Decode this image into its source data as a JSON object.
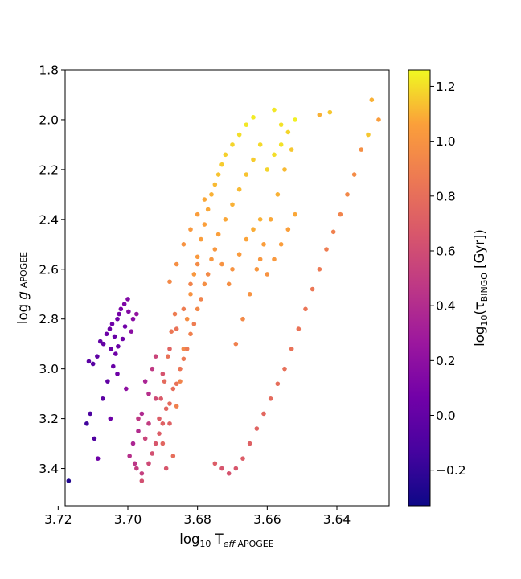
{
  "chart_data": {
    "type": "scatter",
    "xlabel": "log₁₀ T_eff APOGEE",
    "ylabel": "log g APOGEE",
    "xlim": [
      3.718,
      3.625
    ],
    "ylim": [
      3.55,
      1.8
    ],
    "xticks": [
      3.72,
      3.7,
      3.68,
      3.66,
      3.64
    ],
    "xtick_labels": [
      "3.72",
      "3.70",
      "3.68",
      "3.66",
      "3.64"
    ],
    "yticks": [
      1.8,
      2.0,
      2.2,
      2.4,
      2.6,
      2.8,
      3.0,
      3.2,
      3.4
    ],
    "ytick_labels": [
      "1.8",
      "2.0",
      "2.2",
      "2.4",
      "2.6",
      "2.8",
      "3.0",
      "3.2",
      "3.4"
    ],
    "grid": false,
    "colorbar": {
      "label": "log₁₀(τ_BINGO [Gyr])",
      "colormap": "plasma",
      "range": [
        -0.33,
        1.26
      ],
      "ticks": [
        -0.2,
        0.0,
        0.2,
        0.4,
        0.6,
        0.8,
        1.0,
        1.2
      ],
      "tick_labels": [
        "−0.2",
        "0.0",
        "0.2",
        "0.4",
        "0.6",
        "0.8",
        "1.0",
        "1.2"
      ]
    },
    "points": [
      [
        3.7061,
        2.86,
        0.04
      ],
      [
        3.7052,
        2.84,
        0.03
      ],
      [
        3.7045,
        2.82,
        0.05
      ],
      [
        3.7038,
        2.87,
        0.02
      ],
      [
        3.703,
        2.8,
        0.06
      ],
      [
        3.7025,
        2.78,
        0.08
      ],
      [
        3.707,
        2.9,
        0.01
      ],
      [
        3.7079,
        2.89,
        0.0
      ],
      [
        3.7048,
        2.92,
        0.02
      ],
      [
        3.7035,
        2.94,
        0.05
      ],
      [
        3.702,
        2.76,
        0.1
      ],
      [
        3.701,
        2.74,
        0.12
      ],
      [
        3.6998,
        2.77,
        0.15
      ],
      [
        3.6985,
        2.8,
        0.17
      ],
      [
        3.7008,
        2.83,
        0.06
      ],
      [
        3.7015,
        2.88,
        0.05
      ],
      [
        3.7028,
        2.91,
        0.03
      ],
      [
        3.7088,
        2.95,
        -0.02
      ],
      [
        3.71,
        2.98,
        -0.05
      ],
      [
        3.7112,
        2.97,
        -0.03
      ],
      [
        3.7042,
        2.99,
        0.02
      ],
      [
        3.703,
        3.02,
        0.05
      ],
      [
        3.7058,
        3.05,
        -0.01
      ],
      [
        3.7005,
        3.08,
        0.2
      ],
      [
        3.7072,
        3.12,
        -0.03
      ],
      [
        3.7108,
        3.18,
        -0.1
      ],
      [
        3.7118,
        3.22,
        -0.15
      ],
      [
        3.7096,
        3.28,
        -0.08
      ],
      [
        3.7086,
        3.36,
        0.05
      ],
      [
        3.717,
        3.45,
        -0.26
      ],
      [
        3.705,
        3.2,
        0.05
      ],
      [
        3.699,
        2.85,
        0.18
      ],
      [
        3.6975,
        2.78,
        0.22
      ],
      [
        3.7,
        2.72,
        0.14
      ],
      [
        3.695,
        3.05,
        0.35
      ],
      [
        3.694,
        3.1,
        0.42
      ],
      [
        3.693,
        3.0,
        0.48
      ],
      [
        3.692,
        2.95,
        0.55
      ],
      [
        3.696,
        3.18,
        0.38
      ],
      [
        3.697,
        3.25,
        0.4
      ],
      [
        3.6985,
        3.3,
        0.36
      ],
      [
        3.6995,
        3.35,
        0.42
      ],
      [
        3.6975,
        3.4,
        0.5
      ],
      [
        3.696,
        3.45,
        0.62
      ],
      [
        3.691,
        3.2,
        0.7
      ],
      [
        3.69,
        3.3,
        0.75
      ],
      [
        3.6905,
        3.12,
        0.68
      ],
      [
        3.6895,
        3.05,
        0.78
      ],
      [
        3.6885,
        2.95,
        0.82
      ],
      [
        3.6875,
        2.85,
        0.85
      ],
      [
        3.6865,
        2.78,
        0.88
      ],
      [
        3.688,
        3.22,
        0.72
      ],
      [
        3.687,
        3.35,
        0.8
      ],
      [
        3.689,
        3.4,
        0.66
      ],
      [
        3.686,
        3.15,
        0.9
      ],
      [
        3.685,
        3.05,
        0.92
      ],
      [
        3.684,
        2.92,
        0.95
      ],
      [
        3.683,
        2.8,
        0.97
      ],
      [
        3.682,
        2.7,
        1.0
      ],
      [
        3.681,
        2.62,
        1.02
      ],
      [
        3.68,
        2.55,
        1.03
      ],
      [
        3.679,
        2.48,
        1.05
      ],
      [
        3.678,
        2.42,
        1.06
      ],
      [
        3.677,
        2.36,
        1.08
      ],
      [
        3.676,
        2.3,
        1.1
      ],
      [
        3.675,
        2.26,
        1.12
      ],
      [
        3.674,
        2.22,
        1.14
      ],
      [
        3.673,
        2.18,
        1.16
      ],
      [
        3.672,
        2.14,
        1.17
      ],
      [
        3.67,
        2.1,
        1.18
      ],
      [
        3.668,
        2.06,
        1.2
      ],
      [
        3.666,
        2.02,
        1.22
      ],
      [
        3.664,
        1.99,
        1.23
      ],
      [
        3.658,
        1.96,
        1.22
      ],
      [
        3.656,
        2.02,
        1.21
      ],
      [
        3.654,
        2.05,
        1.18
      ],
      [
        3.652,
        2.0,
        1.24
      ],
      [
        3.645,
        1.98,
        1.1
      ],
      [
        3.642,
        1.97,
        1.15
      ],
      [
        3.63,
        1.92,
        1.1
      ],
      [
        3.628,
        2.0,
        1.05
      ],
      [
        3.631,
        2.06,
        1.15
      ],
      [
        3.633,
        2.12,
        0.98
      ],
      [
        3.635,
        2.22,
        0.96
      ],
      [
        3.637,
        2.3,
        0.94
      ],
      [
        3.639,
        2.38,
        0.92
      ],
      [
        3.641,
        2.45,
        0.9
      ],
      [
        3.643,
        2.52,
        0.88
      ],
      [
        3.645,
        2.6,
        0.86
      ],
      [
        3.647,
        2.68,
        0.85
      ],
      [
        3.649,
        2.76,
        0.84
      ],
      [
        3.651,
        2.84,
        0.83
      ],
      [
        3.653,
        2.92,
        0.82
      ],
      [
        3.655,
        3.0,
        0.81
      ],
      [
        3.657,
        3.06,
        0.8
      ],
      [
        3.659,
        3.12,
        0.78
      ],
      [
        3.661,
        3.18,
        0.76
      ],
      [
        3.663,
        3.24,
        0.74
      ],
      [
        3.665,
        3.3,
        0.72
      ],
      [
        3.667,
        3.36,
        0.7
      ],
      [
        3.669,
        3.4,
        0.66
      ],
      [
        3.671,
        3.42,
        0.64
      ],
      [
        3.673,
        3.4,
        0.65
      ],
      [
        3.675,
        3.38,
        0.7
      ],
      [
        3.669,
        2.9,
        0.9
      ],
      [
        3.667,
        2.8,
        0.95
      ],
      [
        3.665,
        2.7,
        1.0
      ],
      [
        3.663,
        2.6,
        1.02
      ],
      [
        3.661,
        2.5,
        1.05
      ],
      [
        3.659,
        2.4,
        1.08
      ],
      [
        3.657,
        2.3,
        1.1
      ],
      [
        3.655,
        2.2,
        1.12
      ],
      [
        3.653,
        2.12,
        1.15
      ],
      [
        3.671,
        2.66,
        0.98
      ],
      [
        3.673,
        2.58,
        1.0
      ],
      [
        3.675,
        2.52,
        1.02
      ],
      [
        3.677,
        2.62,
        0.95
      ],
      [
        3.679,
        2.72,
        0.92
      ],
      [
        3.681,
        2.82,
        0.88
      ],
      [
        3.683,
        2.92,
        0.86
      ],
      [
        3.685,
        3.0,
        0.84
      ],
      [
        3.687,
        3.08,
        0.8
      ],
      [
        3.689,
        3.16,
        0.75
      ],
      [
        3.691,
        3.26,
        0.7
      ],
      [
        3.693,
        3.34,
        0.62
      ],
      [
        3.695,
        3.28,
        0.55
      ],
      [
        3.697,
        3.2,
        0.48
      ],
      [
        3.688,
        2.65,
        0.95
      ],
      [
        3.686,
        2.58,
        0.98
      ],
      [
        3.684,
        2.5,
        1.0
      ],
      [
        3.682,
        2.44,
        1.03
      ],
      [
        3.68,
        2.38,
        1.05
      ],
      [
        3.678,
        2.32,
        1.08
      ],
      [
        3.662,
        2.4,
        1.1
      ],
      [
        3.66,
        2.2,
        1.18
      ],
      [
        3.658,
        2.14,
        1.2
      ],
      [
        3.656,
        2.1,
        1.21
      ],
      [
        3.662,
        2.1,
        1.19
      ],
      [
        3.664,
        2.16,
        1.16
      ],
      [
        3.666,
        2.22,
        1.14
      ],
      [
        3.668,
        2.28,
        1.12
      ],
      [
        3.67,
        2.34,
        1.1
      ],
      [
        3.672,
        2.4,
        1.08
      ],
      [
        3.674,
        2.46,
        1.06
      ],
      [
        3.676,
        2.56,
        1.02
      ],
      [
        3.678,
        2.66,
        0.98
      ],
      [
        3.68,
        2.76,
        0.94
      ],
      [
        3.682,
        2.86,
        0.9
      ],
      [
        3.684,
        2.96,
        0.86
      ],
      [
        3.686,
        3.06,
        0.82
      ],
      [
        3.688,
        3.14,
        0.78
      ],
      [
        3.69,
        3.22,
        0.72
      ],
      [
        3.692,
        3.3,
        0.66
      ],
      [
        3.694,
        3.38,
        0.58
      ],
      [
        3.696,
        3.42,
        0.52
      ],
      [
        3.698,
        3.38,
        0.46
      ],
      [
        3.694,
        3.22,
        0.5
      ],
      [
        3.692,
        3.12,
        0.58
      ],
      [
        3.69,
        3.02,
        0.64
      ],
      [
        3.688,
        2.92,
        0.74
      ],
      [
        3.686,
        2.84,
        0.82
      ],
      [
        3.684,
        2.76,
        0.88
      ],
      [
        3.682,
        2.66,
        0.92
      ],
      [
        3.68,
        2.58,
        0.96
      ],
      [
        3.67,
        2.6,
        1.0
      ],
      [
        3.668,
        2.54,
        1.04
      ],
      [
        3.666,
        2.48,
        1.07
      ],
      [
        3.664,
        2.44,
        1.09
      ],
      [
        3.662,
        2.56,
        1.02
      ],
      [
        3.66,
        2.62,
        1.0
      ],
      [
        3.658,
        2.56,
        1.03
      ],
      [
        3.656,
        2.5,
        1.05
      ],
      [
        3.654,
        2.44,
        1.06
      ],
      [
        3.652,
        2.38,
        1.08
      ]
    ]
  }
}
